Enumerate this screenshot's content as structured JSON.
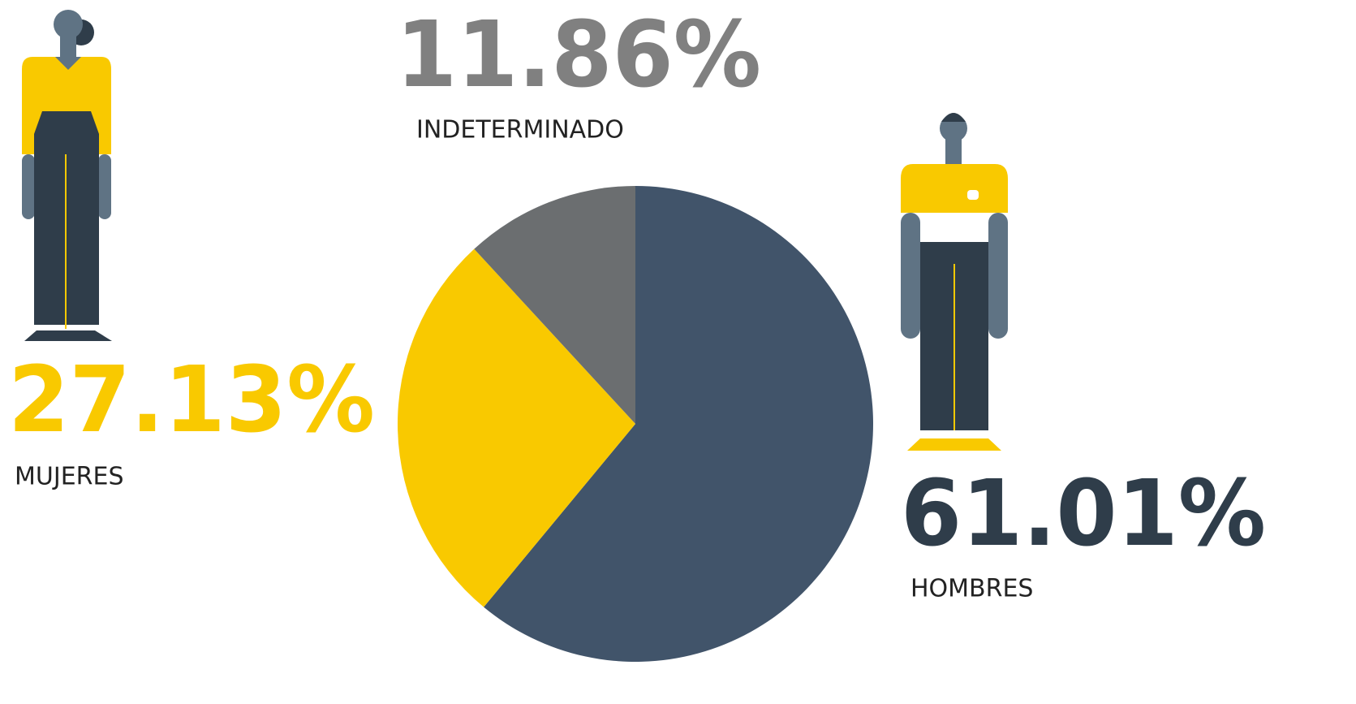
{
  "chart_data": {
    "type": "pie",
    "categories": [
      "HOMBRES",
      "MUJERES",
      "INDETERMINADO"
    ],
    "values": [
      61.01,
      27.13,
      11.86
    ],
    "value_labels": [
      "61.01%",
      "27.13%",
      "11.86%"
    ],
    "colors": [
      "#41546a",
      "#f9c900",
      "#6b6e70"
    ],
    "label_colors": [
      "#2f3d4a",
      "#f9c900",
      "#808080"
    ]
  }
}
